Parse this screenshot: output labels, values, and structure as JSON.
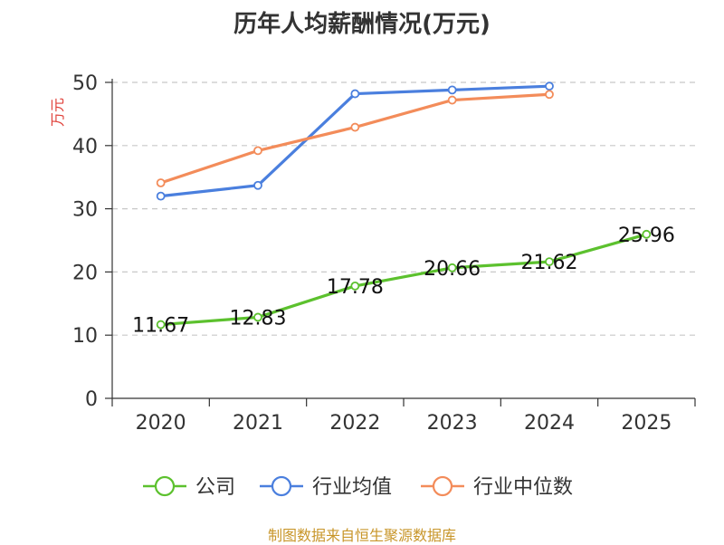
{
  "title": "历年人均薪酬情况(万元)",
  "footer": "制图数据来自恒生聚源数据库",
  "chart_data": {
    "type": "line",
    "title": "历年人均薪酬情况(万元)",
    "ylabel": "万元",
    "xlabel": "",
    "categories": [
      "2020",
      "2021",
      "2022",
      "2023",
      "2024",
      "2025"
    ],
    "ylim": [
      0,
      50
    ],
    "yticks": [
      0,
      10,
      20,
      30,
      40,
      50
    ],
    "grid": true,
    "legend_position": "bottom",
    "series": [
      {
        "name": "公司",
        "color": "#5cc12e",
        "values": [
          11.67,
          12.83,
          17.78,
          20.66,
          21.62,
          25.96
        ],
        "labels": [
          "11.67",
          "12.83",
          "17.78",
          "20.66",
          "21.62",
          "25.96"
        ]
      },
      {
        "name": "行业均值",
        "color": "#4a7fde",
        "values": [
          32.0,
          33.7,
          48.2,
          48.8,
          49.4,
          null
        ]
      },
      {
        "name": "行业中位数",
        "color": "#f38c5a",
        "values": [
          34.1,
          39.2,
          42.9,
          47.2,
          48.1,
          null
        ]
      }
    ]
  }
}
